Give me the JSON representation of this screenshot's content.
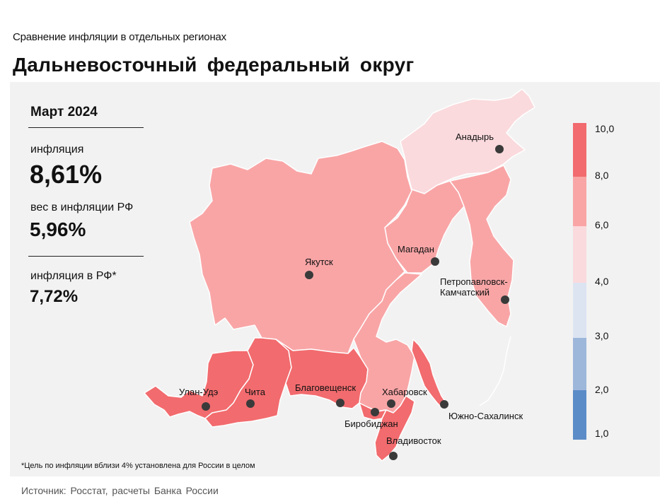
{
  "header": {
    "subtitle": "Сравнение  инфляции  в отдельных  регионах",
    "title": "Дальневосточный  федеральный  округ"
  },
  "stats": {
    "date": "Март 2024",
    "inflation_label": "инфляция",
    "inflation_value": "8,61%",
    "weight_label": "вес в инфляции  РФ",
    "weight_value": "5,96%",
    "rf_label": "инфляция  в РФ*",
    "rf_value": "7,72%"
  },
  "cities": {
    "anadyr": "Анадырь",
    "yakutsk": "Якутск",
    "magadan": "Магадан",
    "petro1": "Петропавловск-",
    "petro2": "Камчатский",
    "ulan_ude": "Улан-Удэ",
    "chita": "Чита",
    "blag": "Благовещенск",
    "khab": "Хабаровск",
    "birob": "Биробиджан",
    "sakh": "Южно-Сахалинск",
    "vlad": "Владивосток"
  },
  "legend": {
    "ticks": [
      "10,0",
      "8,0",
      "6,0",
      "4,0",
      "3,0",
      "2,0",
      "1,0"
    ],
    "colors": [
      "#f26b6e",
      "#f9a5a6",
      "#fadadd",
      "#dce4f2",
      "#9db7da",
      "#5b8cc7"
    ]
  },
  "colors": {
    "high": "#f26b6e",
    "mid": "#f9a5a6",
    "low": "#fadadd",
    "panel": "#f2f2f2"
  },
  "footnote": "*Цель по инфляции вблизи 4% установлена для России в целом",
  "source": "Источник: Росстат, расчеты  Банка  России"
}
